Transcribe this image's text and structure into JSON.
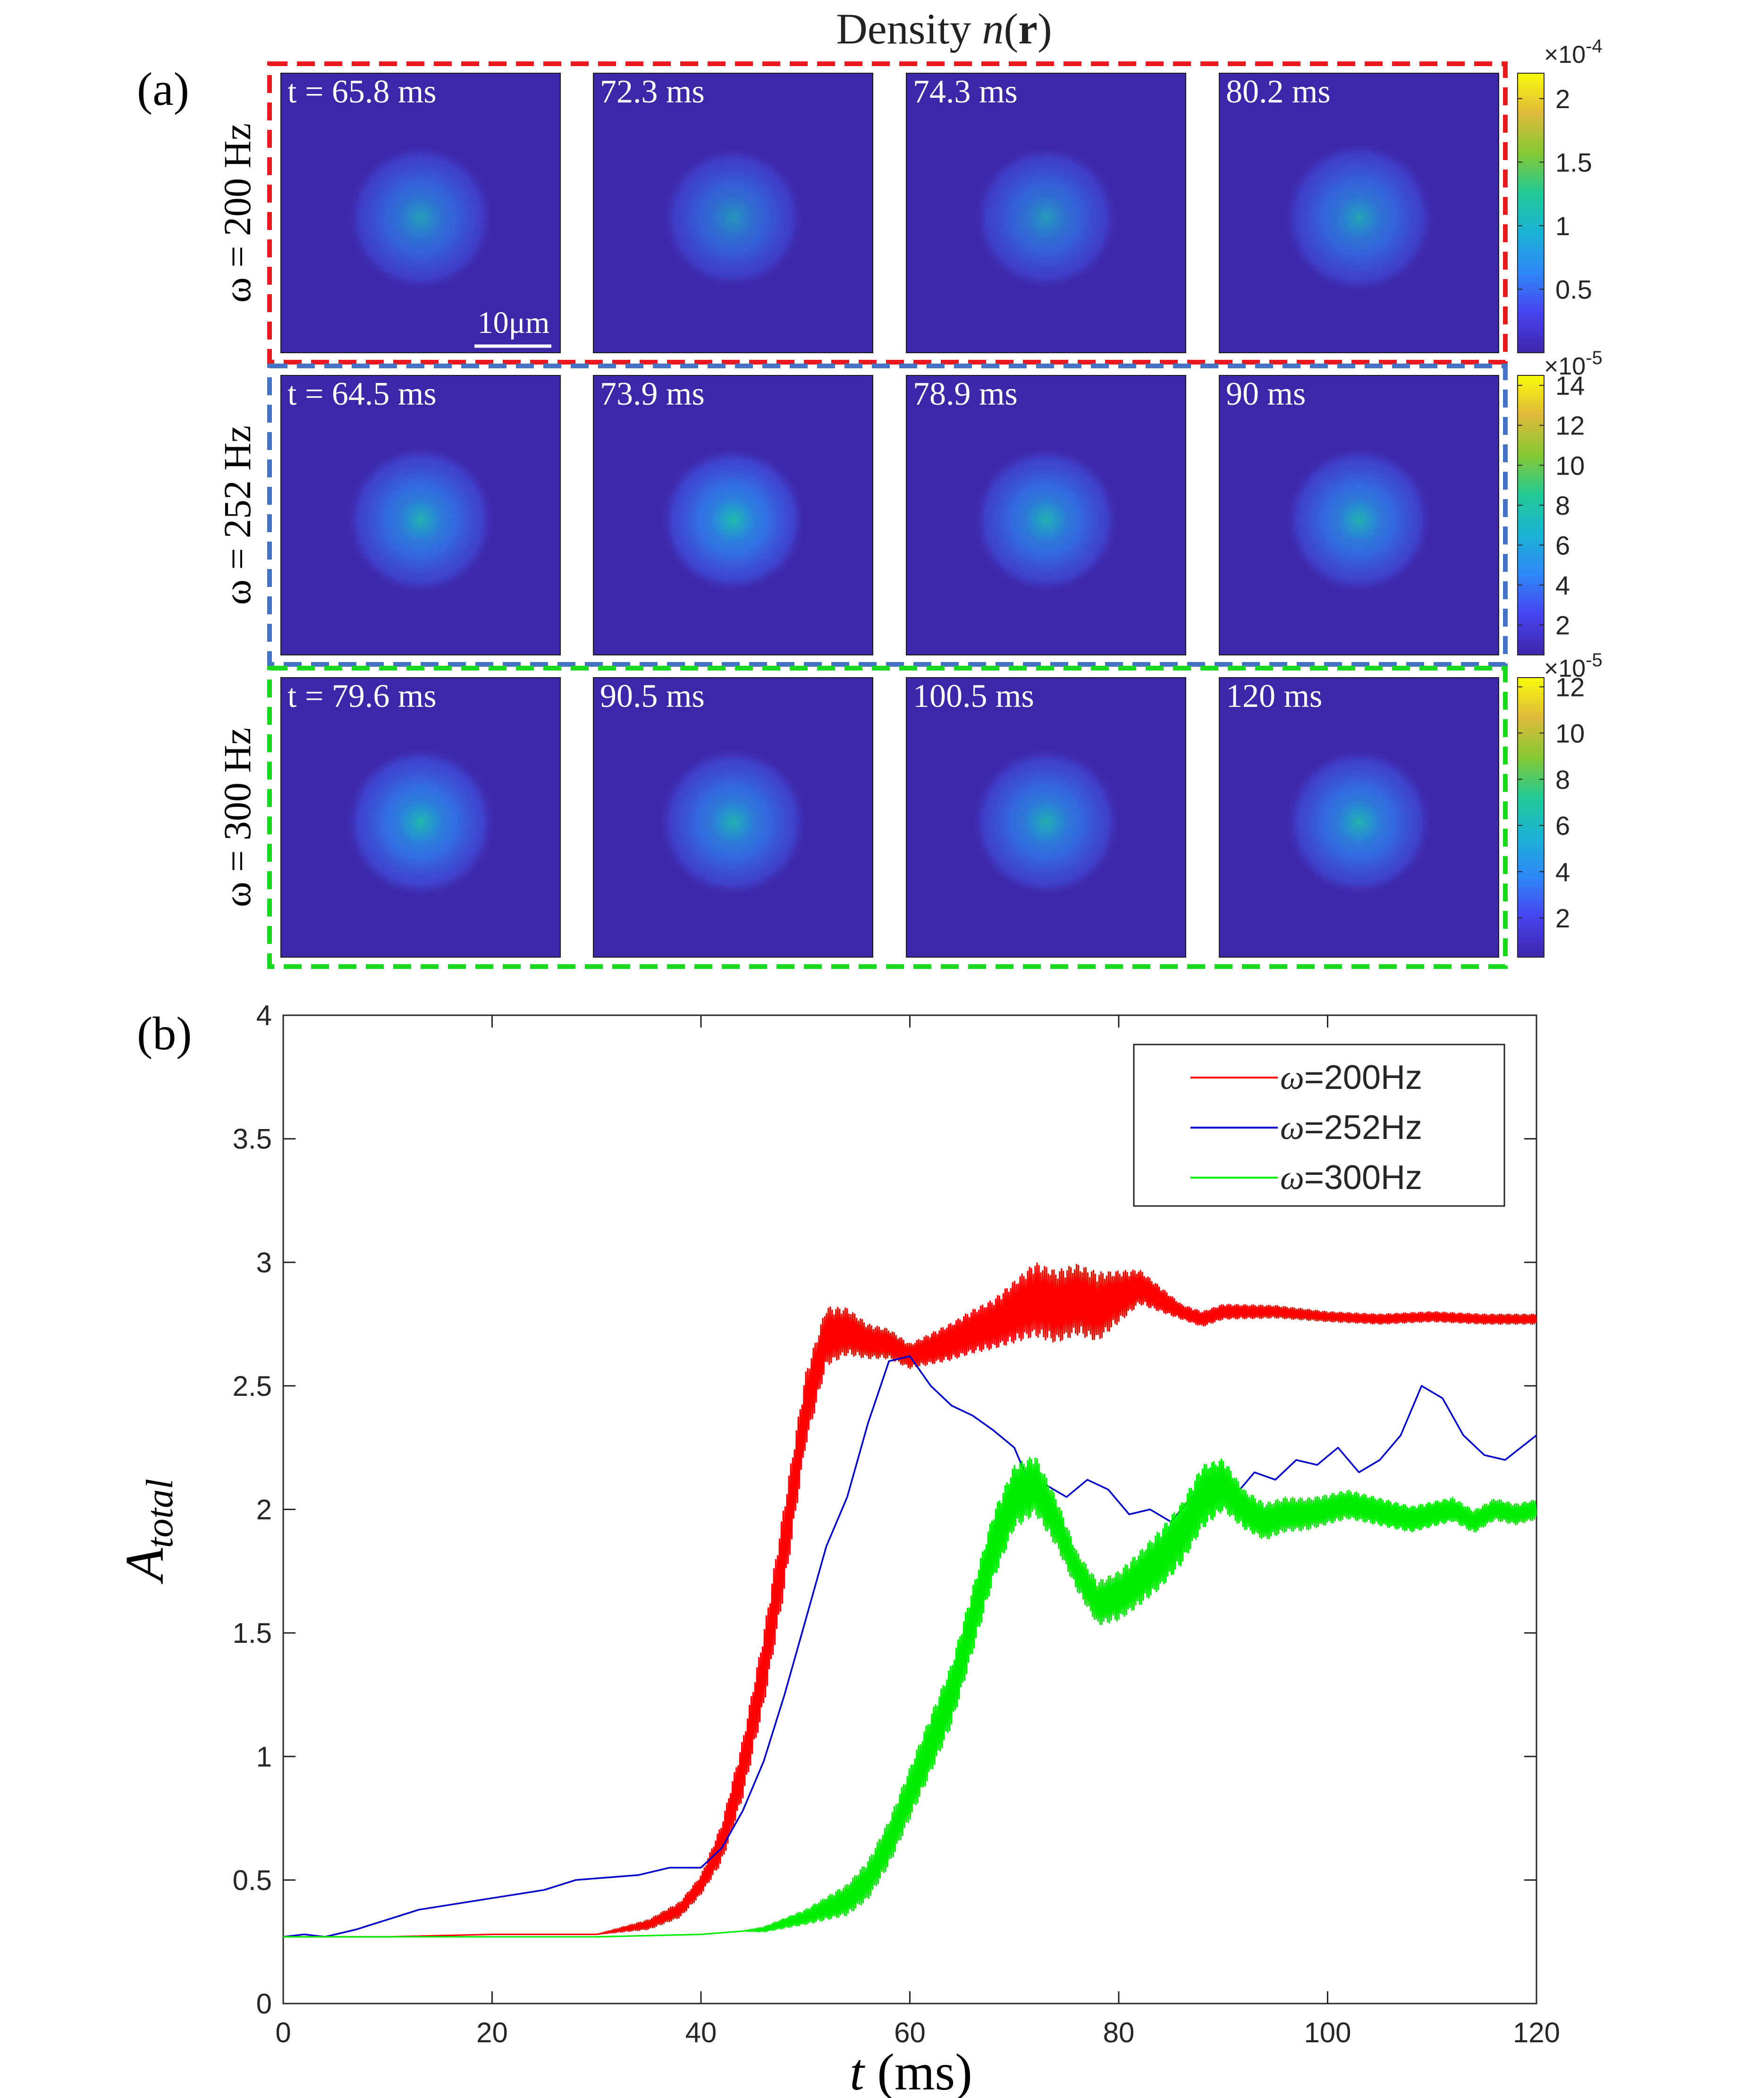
{
  "panel_a": {
    "label": "(a)",
    "title_prefix": "Density ",
    "title_n": "n",
    "title_paren_open": "(",
    "title_r": "r",
    "title_paren_close": ")",
    "scale_bar_label": "10μm",
    "rows": [
      {
        "label": "ω = 200 Hz",
        "border_color": "#e8191f",
        "times": [
          "t = 65.8 ms",
          "72.3 ms",
          "74.3 ms",
          "80.2 ms"
        ],
        "colorbar": {
          "exp_top": "×10",
          "exp_top_sup": "-4",
          "exp_bottom": "×10",
          "exp_bottom_sup": "-5",
          "ticks": [
            "2",
            "1.5",
            "1",
            "0.5"
          ],
          "tick_values": [
            2,
            1.5,
            1,
            0.5
          ],
          "range": [
            0,
            2.2
          ]
        }
      },
      {
        "label": "ω = 252 Hz",
        "border_color": "#4472c4",
        "times": [
          "t = 64.5 ms",
          "73.9 ms",
          "78.9 ms",
          "90 ms"
        ],
        "colorbar": {
          "exp_bottom": "×10",
          "exp_bottom_sup": "-5",
          "ticks": [
            "14",
            "12",
            "10",
            "8",
            "6",
            "4",
            "2"
          ],
          "tick_values": [
            14,
            12,
            10,
            8,
            6,
            4,
            2
          ],
          "range": [
            0.5,
            14.5
          ]
        }
      },
      {
        "label": "ω = 300 Hz",
        "border_color": "#19d91f",
        "times": [
          "t = 79.6 ms",
          "90.5 ms",
          "100.5 ms",
          "120 ms"
        ],
        "colorbar": {
          "ticks": [
            "12",
            "10",
            "8",
            "6",
            "4",
            "2"
          ],
          "tick_values": [
            12,
            10,
            8,
            6,
            4,
            2
          ],
          "range": [
            0.3,
            12.4
          ]
        }
      }
    ],
    "colormap": [
      "#3e26a8",
      "#4743f0",
      "#2e87f7",
      "#1cb2d6",
      "#22c996",
      "#85c932",
      "#e0b93a",
      "#f9fb0e"
    ]
  },
  "panel_b": {
    "label": "(b)",
    "ylabel_main": "A",
    "ylabel_sub": "total",
    "xlabel_t": "t",
    "xlabel_unit": " (ms)"
  },
  "chart_data": {
    "type": "line",
    "title": "",
    "xlabel": "t (ms)",
    "ylabel": "A_total",
    "xlim": [
      0,
      120
    ],
    "ylim": [
      0,
      4
    ],
    "xticks": [
      0,
      20,
      40,
      60,
      80,
      100,
      120
    ],
    "xtick_labels": [
      "0",
      "20",
      "40",
      "60",
      "80",
      "100",
      "120"
    ],
    "yticks": [
      0,
      0.5,
      1,
      1.5,
      2,
      2.5,
      3,
      3.5,
      4
    ],
    "ytick_labels": [
      "0",
      "0.5",
      "1",
      "1.5",
      "2",
      "2.5",
      "3",
      "3.5",
      "4"
    ],
    "grid": false,
    "legend_position": "top-right",
    "series": [
      {
        "name": "ω=200Hz",
        "legend_symbol": "ω",
        "legend_text": "=200Hz",
        "color": "#ff0000",
        "oscillating": true,
        "x": [
          0,
          10,
          20,
          30,
          35,
          38,
          40,
          42,
          44,
          46,
          48,
          50,
          52,
          54,
          56,
          58,
          60,
          62,
          64,
          66,
          68,
          70,
          72,
          74,
          76,
          78,
          80,
          82,
          84,
          86,
          88,
          90,
          95,
          100,
          105,
          110,
          115,
          120
        ],
        "y": [
          0.27,
          0.27,
          0.28,
          0.28,
          0.32,
          0.38,
          0.48,
          0.65,
          0.95,
          1.35,
          1.85,
          2.4,
          2.7,
          2.72,
          2.68,
          2.67,
          2.62,
          2.65,
          2.68,
          2.72,
          2.75,
          2.8,
          2.85,
          2.82,
          2.85,
          2.82,
          2.86,
          2.9,
          2.85,
          2.8,
          2.77,
          2.8,
          2.8,
          2.78,
          2.77,
          2.78,
          2.77,
          2.77
        ],
        "amp_x": [
          0,
          30,
          40,
          44,
          48,
          52,
          56,
          60,
          68,
          72,
          78,
          82,
          86,
          90,
          100,
          120
        ],
        "amp_y": [
          0.0,
          0.0,
          0.04,
          0.12,
          0.18,
          0.12,
          0.07,
          0.05,
          0.1,
          0.15,
          0.14,
          0.07,
          0.03,
          0.03,
          0.02,
          0.02
        ]
      },
      {
        "name": "ω=252Hz",
        "legend_symbol": "ω",
        "legend_text": "=252Hz",
        "color": "#0000cc",
        "oscillating": false,
        "x": [
          0,
          2,
          4,
          5,
          7,
          10,
          13,
          16,
          19,
          22,
          25,
          28,
          31,
          34,
          37,
          40,
          42,
          44,
          46,
          48,
          50,
          52,
          54,
          56,
          58,
          60,
          62,
          64,
          66,
          68,
          70,
          71,
          72,
          73,
          75,
          77,
          79,
          81,
          83,
          85,
          87,
          89,
          91,
          93,
          95,
          97,
          99,
          101,
          103,
          105,
          107,
          109,
          111,
          113,
          115,
          117,
          120
        ],
        "y": [
          0.27,
          0.28,
          0.27,
          0.28,
          0.3,
          0.34,
          0.38,
          0.4,
          0.42,
          0.44,
          0.46,
          0.5,
          0.51,
          0.52,
          0.55,
          0.55,
          0.63,
          0.78,
          0.98,
          1.25,
          1.55,
          1.85,
          2.05,
          2.35,
          2.6,
          2.62,
          2.5,
          2.42,
          2.38,
          2.32,
          2.25,
          2.15,
          2.05,
          2.1,
          2.05,
          2.12,
          2.08,
          1.98,
          2.0,
          1.95,
          2.05,
          2.1,
          2.05,
          2.15,
          2.12,
          2.2,
          2.18,
          2.25,
          2.15,
          2.2,
          2.3,
          2.5,
          2.45,
          2.3,
          2.22,
          2.2,
          2.3
        ]
      },
      {
        "name": "ω=300Hz",
        "legend_symbol": "ω",
        "legend_text": "=300Hz",
        "color": "#00ee00",
        "oscillating": true,
        "x": [
          0,
          10,
          20,
          30,
          40,
          46,
          50,
          54,
          56,
          58,
          60,
          62,
          64,
          66,
          68,
          70,
          72,
          74,
          76,
          78,
          80,
          82,
          84,
          86,
          88,
          90,
          92,
          94,
          96,
          98,
          100,
          102,
          104,
          106,
          108,
          110,
          112,
          114,
          116,
          118,
          120
        ],
        "y": [
          0.27,
          0.27,
          0.27,
          0.27,
          0.28,
          0.3,
          0.35,
          0.42,
          0.5,
          0.65,
          0.85,
          1.05,
          1.25,
          1.55,
          1.85,
          2.05,
          2.1,
          1.95,
          1.75,
          1.62,
          1.65,
          1.72,
          1.8,
          1.9,
          2.05,
          2.1,
          2.0,
          1.95,
          1.98,
          1.98,
          2.0,
          2.02,
          2.0,
          1.98,
          1.96,
          1.98,
          2.0,
          1.95,
          2.0,
          1.98,
          2.0
        ],
        "amp_x": [
          0,
          44,
          50,
          56,
          62,
          68,
          72,
          76,
          80,
          84,
          88,
          92,
          100,
          110,
          120
        ],
        "amp_y": [
          0.0,
          0.0,
          0.03,
          0.08,
          0.12,
          0.14,
          0.12,
          0.08,
          0.1,
          0.12,
          0.13,
          0.08,
          0.06,
          0.05,
          0.04
        ]
      }
    ]
  }
}
